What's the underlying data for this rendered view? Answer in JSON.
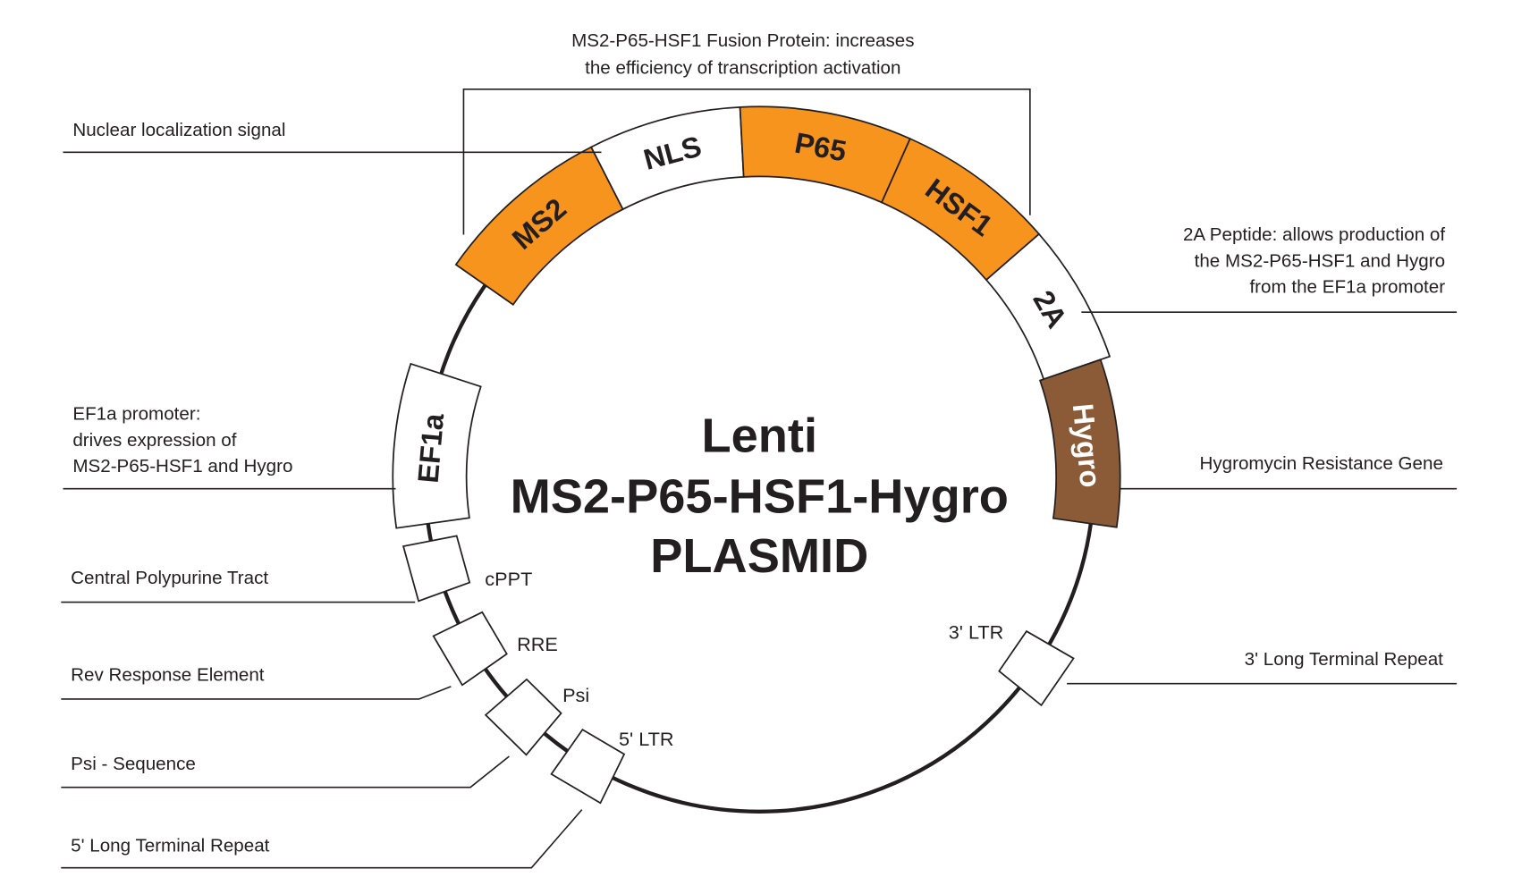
{
  "title": {
    "line1": "Lenti",
    "line2": "MS2-P65-HSF1-Hygro",
    "line3": "PLASMID"
  },
  "colors": {
    "orange": "#F7941D",
    "brown": "#8B5A37",
    "white": "#FFFFFF",
    "stroke": "#231F20"
  },
  "bracket": {
    "line1": "MS2-P65-HSF1 Fusion Protein: increases",
    "line2": "the efficiency of transcription activation"
  },
  "segments": [
    {
      "label": "MS2",
      "fill": "orange"
    },
    {
      "label": "NLS",
      "fill": "white"
    },
    {
      "label": "P65",
      "fill": "orange"
    },
    {
      "label": "HSF1",
      "fill": "orange"
    },
    {
      "label": "2A",
      "fill": "white"
    },
    {
      "label": "Hygro",
      "fill": "brown"
    },
    {
      "label": "EF1a",
      "fill": "white"
    }
  ],
  "small_features": [
    {
      "label": "cPPT"
    },
    {
      "label": "RRE"
    },
    {
      "label": "Psi"
    },
    {
      "label": "5' LTR"
    },
    {
      "label": "3' LTR"
    }
  ],
  "annotations": {
    "nls": [
      "Nuclear localization signal"
    ],
    "twoA": [
      "2A Peptide: allows production of",
      "the MS2-P65-HSF1 and Hygro",
      "from the EF1a promoter"
    ],
    "hygro": [
      "Hygromycin Resistance Gene"
    ],
    "ltr3": [
      "3' Long Terminal Repeat"
    ],
    "ef1a": [
      "EF1a promoter:",
      "drives expression of",
      "MS2-P65-HSF1 and Hygro"
    ],
    "cppt": [
      "Central Polypurine Tract"
    ],
    "rre": [
      "Rev Response Element"
    ],
    "psi": [
      "Psi - Sequence"
    ],
    "ltr5": [
      "5' Long Terminal Repeat"
    ]
  }
}
